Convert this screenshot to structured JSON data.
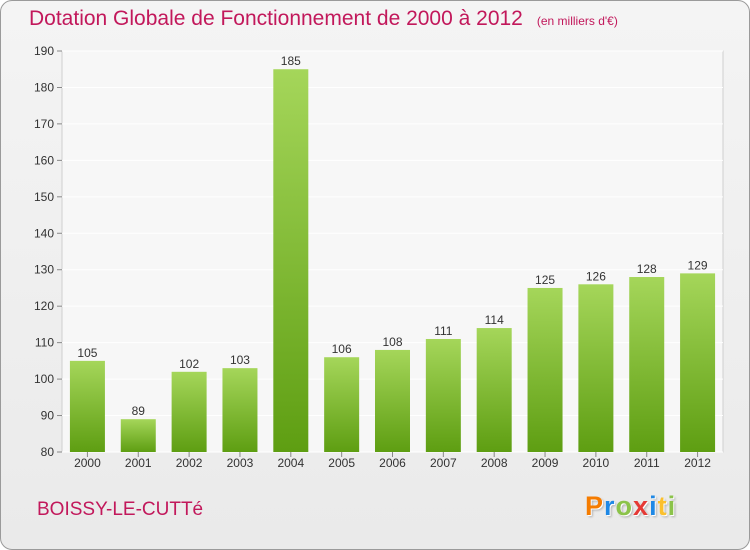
{
  "header": {
    "title": "Dotation Globale de Fonctionnement de 2000 à 2012",
    "unit": "(en milliers d'€)"
  },
  "footer": {
    "commune": "BOISSY-LE-CUTTé",
    "logo_letters": [
      "P",
      "r",
      "o",
      "x",
      "i",
      "t",
      "i"
    ],
    "logo_colors": [
      "#f57c00",
      "#1e88e5",
      "#8bc34a",
      "#e53935",
      "#1e88e5",
      "#fbc02d",
      "#8bc34a"
    ]
  },
  "colors": {
    "title": "#c2185b",
    "bar_light": "#a5d65a",
    "bar_dark": "#5e9e12",
    "grid": "#ffffff",
    "axis_text": "#333333"
  },
  "chart_data": {
    "type": "bar",
    "title": "Dotation Globale de Fonctionnement de 2000 à 2012",
    "categories": [
      "2000",
      "2001",
      "2002",
      "2003",
      "2004",
      "2005",
      "2006",
      "2007",
      "2008",
      "2009",
      "2010",
      "2011",
      "2012"
    ],
    "values": [
      105,
      89,
      102,
      103,
      185,
      106,
      108,
      111,
      114,
      125,
      126,
      128,
      129
    ],
    "ylim": [
      80,
      190
    ],
    "yticks": [
      80,
      90,
      100,
      110,
      120,
      130,
      140,
      150,
      160,
      170,
      180,
      190
    ],
    "grid": true,
    "data_labels": true
  }
}
